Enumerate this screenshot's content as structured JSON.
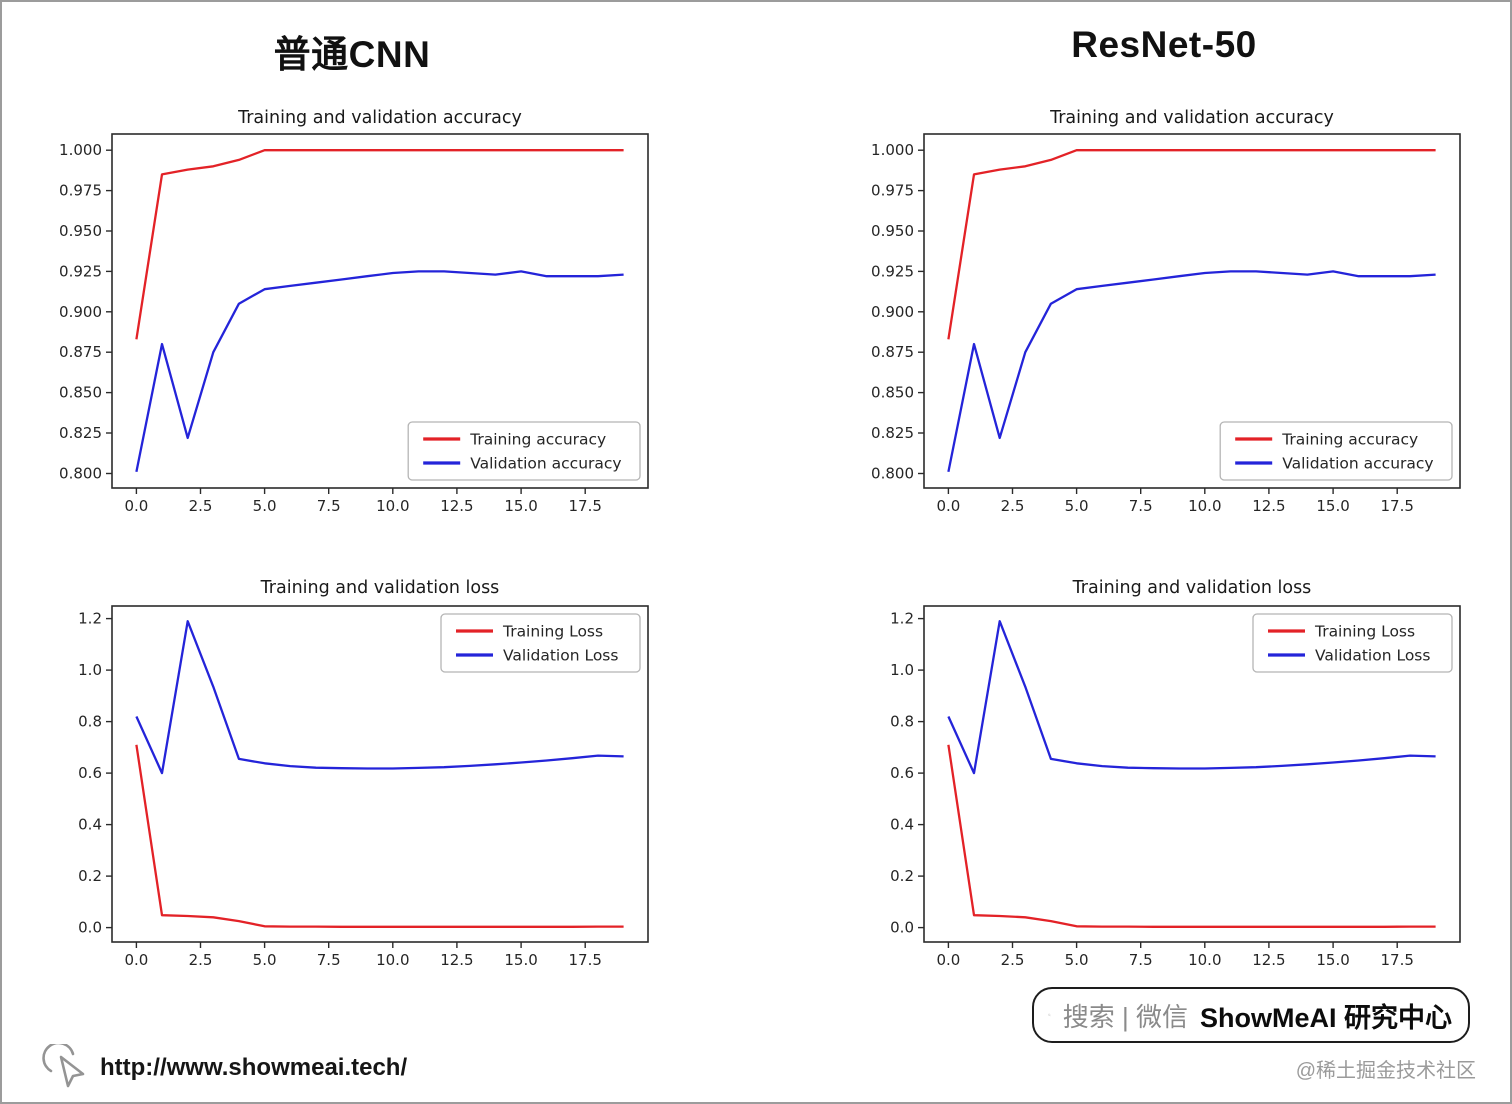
{
  "columns": {
    "left": "普通CNN",
    "right": "ResNet-50"
  },
  "footer": {
    "url": "http://www.showmeai.tech/",
    "search_text": "搜索 | 微信",
    "brand_text": "ShowMeAI 研究中心",
    "attribution": "@稀土掘金技术社区"
  },
  "colors": {
    "training": "#e32227",
    "validation": "#2424d9",
    "axis": "#2b2b2b",
    "legend_border": "#b5b5b5",
    "muted_icon": "#949494"
  },
  "chart_data": [
    {
      "type": "line",
      "model": "普通CNN",
      "title": "Training and validation accuracy",
      "x": [
        0,
        1,
        2,
        3,
        4,
        5,
        6,
        7,
        8,
        9,
        10,
        11,
        12,
        13,
        14,
        15,
        16,
        17,
        18,
        19
      ],
      "xlim": [
        -0.95,
        19.95
      ],
      "ylim": [
        0.791,
        1.01
      ],
      "xticks": [
        0,
        2.5,
        5,
        7.5,
        10,
        12.5,
        15,
        17.5
      ],
      "xtick_labels": [
        "0.0",
        "2.5",
        "5.0",
        "7.5",
        "10.0",
        "12.5",
        "15.0",
        "17.5"
      ],
      "yticks": [
        0.8,
        0.825,
        0.85,
        0.875,
        0.9,
        0.925,
        0.95,
        0.975,
        1.0
      ],
      "ytick_labels": [
        "0.800",
        "0.825",
        "0.850",
        "0.875",
        "0.900",
        "0.925",
        "0.950",
        "0.975",
        "1.000"
      ],
      "grid": false,
      "legend_position": "lower right",
      "series": [
        {
          "name": "Training accuracy",
          "color": "#e32227",
          "values": [
            0.883,
            0.985,
            0.988,
            0.99,
            0.994,
            1.0,
            1.0,
            1.0,
            1.0,
            1.0,
            1.0,
            1.0,
            1.0,
            1.0,
            1.0,
            1.0,
            1.0,
            1.0,
            1.0,
            1.0
          ]
        },
        {
          "name": "Validation accuracy",
          "color": "#2424d9",
          "values": [
            0.801,
            0.88,
            0.822,
            0.875,
            0.905,
            0.914,
            0.916,
            0.918,
            0.92,
            0.922,
            0.924,
            0.925,
            0.925,
            0.924,
            0.923,
            0.925,
            0.922,
            0.922,
            0.922,
            0.923
          ]
        }
      ]
    },
    {
      "type": "line",
      "model": "ResNet-50",
      "title": "Training and validation accuracy",
      "x": [
        0,
        1,
        2,
        3,
        4,
        5,
        6,
        7,
        8,
        9,
        10,
        11,
        12,
        13,
        14,
        15,
        16,
        17,
        18,
        19
      ],
      "xlim": [
        -0.95,
        19.95
      ],
      "ylim": [
        0.791,
        1.01
      ],
      "xticks": [
        0,
        2.5,
        5,
        7.5,
        10,
        12.5,
        15,
        17.5
      ],
      "xtick_labels": [
        "0.0",
        "2.5",
        "5.0",
        "7.5",
        "10.0",
        "12.5",
        "15.0",
        "17.5"
      ],
      "yticks": [
        0.8,
        0.825,
        0.85,
        0.875,
        0.9,
        0.925,
        0.95,
        0.975,
        1.0
      ],
      "ytick_labels": [
        "0.800",
        "0.825",
        "0.850",
        "0.875",
        "0.900",
        "0.925",
        "0.950",
        "0.975",
        "1.000"
      ],
      "grid": false,
      "legend_position": "lower right",
      "series": [
        {
          "name": "Training accuracy",
          "color": "#e32227",
          "values": [
            0.883,
            0.985,
            0.988,
            0.99,
            0.994,
            1.0,
            1.0,
            1.0,
            1.0,
            1.0,
            1.0,
            1.0,
            1.0,
            1.0,
            1.0,
            1.0,
            1.0,
            1.0,
            1.0,
            1.0
          ]
        },
        {
          "name": "Validation accuracy",
          "color": "#2424d9",
          "values": [
            0.801,
            0.88,
            0.822,
            0.875,
            0.905,
            0.914,
            0.916,
            0.918,
            0.92,
            0.922,
            0.924,
            0.925,
            0.925,
            0.924,
            0.923,
            0.925,
            0.922,
            0.922,
            0.922,
            0.923
          ]
        }
      ]
    },
    {
      "type": "line",
      "model": "普通CNN",
      "title": "Training and validation loss",
      "x": [
        0,
        1,
        2,
        3,
        4,
        5,
        6,
        7,
        8,
        9,
        10,
        11,
        12,
        13,
        14,
        15,
        16,
        17,
        18,
        19
      ],
      "xlim": [
        -0.95,
        19.95
      ],
      "ylim": [
        -0.056,
        1.249
      ],
      "xticks": [
        0,
        2.5,
        5,
        7.5,
        10,
        12.5,
        15,
        17.5
      ],
      "xtick_labels": [
        "0.0",
        "2.5",
        "5.0",
        "7.5",
        "10.0",
        "12.5",
        "15.0",
        "17.5"
      ],
      "yticks": [
        0.0,
        0.2,
        0.4,
        0.6,
        0.8,
        1.0,
        1.2
      ],
      "ytick_labels": [
        "0.0",
        "0.2",
        "0.4",
        "0.6",
        "0.8",
        "1.0",
        "1.2"
      ],
      "grid": false,
      "legend_position": "upper right",
      "series": [
        {
          "name": "Training Loss",
          "color": "#e32227",
          "values": [
            0.71,
            0.048,
            0.045,
            0.04,
            0.025,
            0.005,
            0.004,
            0.004,
            0.003,
            0.003,
            0.003,
            0.003,
            0.003,
            0.003,
            0.003,
            0.003,
            0.003,
            0.003,
            0.004,
            0.004
          ]
        },
        {
          "name": "Validation Loss",
          "color": "#2424d9",
          "values": [
            0.82,
            0.6,
            1.19,
            0.935,
            0.655,
            0.638,
            0.627,
            0.621,
            0.619,
            0.618,
            0.618,
            0.62,
            0.623,
            0.628,
            0.634,
            0.641,
            0.649,
            0.658,
            0.668,
            0.665
          ]
        }
      ]
    },
    {
      "type": "line",
      "model": "ResNet-50",
      "title": "Training and validation loss",
      "x": [
        0,
        1,
        2,
        3,
        4,
        5,
        6,
        7,
        8,
        9,
        10,
        11,
        12,
        13,
        14,
        15,
        16,
        17,
        18,
        19
      ],
      "xlim": [
        -0.95,
        19.95
      ],
      "ylim": [
        -0.056,
        1.249
      ],
      "xticks": [
        0,
        2.5,
        5,
        7.5,
        10,
        12.5,
        15,
        17.5
      ],
      "xtick_labels": [
        "0.0",
        "2.5",
        "5.0",
        "7.5",
        "10.0",
        "12.5",
        "15.0",
        "17.5"
      ],
      "yticks": [
        0.0,
        0.2,
        0.4,
        0.6,
        0.8,
        1.0,
        1.2
      ],
      "ytick_labels": [
        "0.0",
        "0.2",
        "0.4",
        "0.6",
        "0.8",
        "1.0",
        "1.2"
      ],
      "grid": false,
      "legend_position": "upper right",
      "series": [
        {
          "name": "Training Loss",
          "color": "#e32227",
          "values": [
            0.71,
            0.048,
            0.045,
            0.04,
            0.025,
            0.005,
            0.004,
            0.004,
            0.003,
            0.003,
            0.003,
            0.003,
            0.003,
            0.003,
            0.003,
            0.003,
            0.003,
            0.003,
            0.004,
            0.004
          ]
        },
        {
          "name": "Validation Loss",
          "color": "#2424d9",
          "values": [
            0.82,
            0.6,
            1.19,
            0.935,
            0.655,
            0.638,
            0.627,
            0.621,
            0.619,
            0.618,
            0.618,
            0.62,
            0.623,
            0.628,
            0.634,
            0.641,
            0.649,
            0.658,
            0.668,
            0.665
          ]
        }
      ]
    }
  ]
}
